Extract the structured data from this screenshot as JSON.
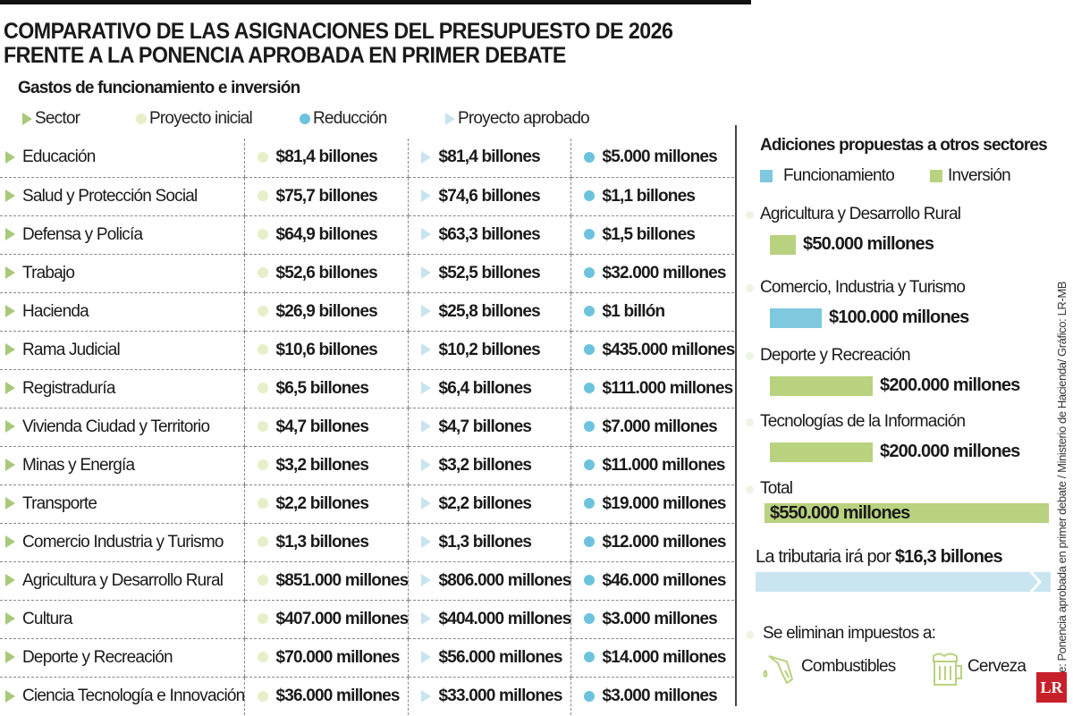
{
  "title_line1": "COMPARATIVO DE LAS ASIGNACIONES DEL PRESUPUESTO DE 2026",
  "title_line2": "FRENTE A LA PONENCIA APROBADA EN PRIMER DEBATE",
  "subtitle": "Gastos de funcionamiento e inversión",
  "legend": {
    "sector": "Sector",
    "inicial": "Proyecto inicial",
    "reduccion": "Reducción",
    "aprobado": "Proyecto aprobado"
  },
  "colors": {
    "sector": "#a8c97a",
    "inicial": "#e6efc8",
    "reduccion": "#6cc3de",
    "aprobado": "#c7e4ef",
    "funcionamiento": "#7ec8e0",
    "inversion": "#b9d27f",
    "logo": "#c8202a"
  },
  "chart_data": {
    "type": "table",
    "columns": [
      "Sector",
      "Proyecto inicial",
      "Proyecto aprobado",
      "Reducción"
    ],
    "rows": [
      [
        "Educación",
        "$81,4 billones",
        "$81,4 billones",
        "$5.000 millones"
      ],
      [
        "Salud y Protección Social",
        "$75,7 billones",
        "$74,6 billones",
        "$1,1 billones"
      ],
      [
        "Defensa y Policía",
        "$64,9 billones",
        "$63,3 billones",
        "$1,5 billones"
      ],
      [
        "Trabajo",
        "$52,6 billones",
        "$52,5 billones",
        "$32.000 millones"
      ],
      [
        "Hacienda",
        "$26,9 billones",
        "$25,8 billones",
        "$1 billón"
      ],
      [
        "Rama Judicial",
        "$10,6 billones",
        "$10,2 billones",
        "$435.000 millones"
      ],
      [
        "Registraduría",
        "$6,5 billones",
        "$6,4 billones",
        "$111.000 millones"
      ],
      [
        "Vivienda Ciudad y Territorio",
        "$4,7 billones",
        "$4,7 billones",
        "$7.000 millones"
      ],
      [
        "Minas y Energía",
        "$3,2 billones",
        "$3,2 billones",
        "$11.000 millones"
      ],
      [
        "Transporte",
        "$2,2 billones",
        "$2,2 billones",
        "$19.000 millones"
      ],
      [
        "Comercio Industria y Turismo",
        "$1,3 billones",
        "$1,3 billones",
        "$12.000 millones"
      ],
      [
        "Agricultura y Desarrollo Rural",
        "$851.000 millones",
        "$806.000 millones",
        "$46.000 millones"
      ],
      [
        "Cultura",
        "$407.000 millones",
        "$404.000 millones",
        "$3.000 millones"
      ],
      [
        "Deporte y Recreación",
        "$70.000 millones",
        "$56.000 millones",
        "$14.000 millones"
      ],
      [
        "Ciencia Tecnología e Innovación",
        "$36.000 millones",
        "$33.000 millones",
        "$3.000 millones"
      ]
    ],
    "additions": {
      "title": "Adiciones propuestas a otros sectores",
      "legend": [
        "Funcionamiento",
        "Inversión"
      ],
      "items": [
        {
          "sector": "Agricultura y Desarrollo Rural",
          "type": "Inversión",
          "value_millones": 50000,
          "label": "$50.000 millones"
        },
        {
          "sector": "Comercio, Industria y Turismo",
          "type": "Funcionamiento",
          "value_millones": 100000,
          "label": "$100.000 millones"
        },
        {
          "sector": "Deporte y Recreación",
          "type": "Inversión",
          "value_millones": 200000,
          "label": "$200.000 millones"
        },
        {
          "sector": "Tecnologías de la Información",
          "type": "Inversión",
          "value_millones": 200000,
          "label": "$200.000 millones"
        }
      ],
      "total_label": "Total",
      "total_value": "$550.000 millones"
    }
  },
  "tributaria": {
    "text": "La tributaria irá por ",
    "value": "$16,3 billones"
  },
  "eliminan": {
    "title": "Se eliminan impuestos a:",
    "items": [
      "Combustibles",
      "Cerveza"
    ]
  },
  "source": "Fuente: Ponencia aprobada en primer debate / Ministerio de Hacienda/ Gráfico: LR-MB",
  "logo": "LR"
}
